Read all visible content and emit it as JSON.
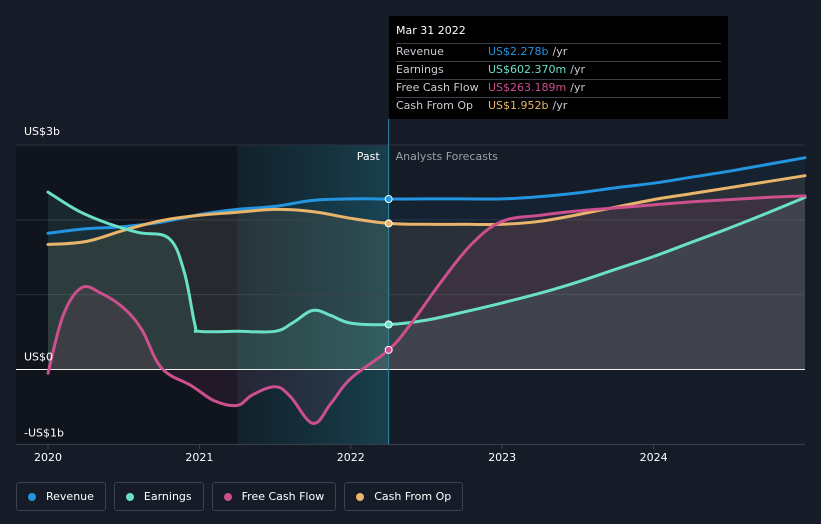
{
  "colors": {
    "revenue": "#2394df",
    "earnings": "#6ae0c6",
    "fcf": "#cc4f8e",
    "cfo": "#e8b56a"
  },
  "tooltip": {
    "date": "Mar 31 2022",
    "rows": [
      {
        "label": "Revenue",
        "value": "US$2.278b",
        "unit": "/yr"
      },
      {
        "label": "Earnings",
        "value": "US$602.370m",
        "unit": "/yr"
      },
      {
        "label": "Free Cash Flow",
        "value": "US$263.189m",
        "unit": "/yr"
      },
      {
        "label": "Cash From Op",
        "value": "US$1.952b",
        "unit": "/yr"
      }
    ]
  },
  "legend": [
    {
      "label": "Revenue",
      "key": "revenue"
    },
    {
      "label": "Earnings",
      "key": "earnings"
    },
    {
      "label": "Free Cash Flow",
      "key": "fcf"
    },
    {
      "label": "Cash From Op",
      "key": "cfo"
    }
  ],
  "chart_data": {
    "type": "line",
    "y_unit": "US$ billions",
    "ylim": [
      -1.0,
      3.0
    ],
    "xlim": [
      2020.0,
      2025.0
    ],
    "y_labels": [
      {
        "value": 3.0,
        "text": "US$3b"
      },
      {
        "value": 0.0,
        "text": "US$0"
      },
      {
        "value": -1.0,
        "text": "-US$1b"
      }
    ],
    "x_ticks": [
      {
        "value": 2020,
        "text": "2020"
      },
      {
        "value": 2021,
        "text": "2021"
      },
      {
        "value": 2022,
        "text": "2022"
      },
      {
        "value": 2023,
        "text": "2023"
      },
      {
        "value": 2024,
        "text": "2024"
      }
    ],
    "period_labels": {
      "past": "Past",
      "forecast": "Analysts Forecasts"
    },
    "highlight_range": [
      2021.25,
      2022.25
    ],
    "marker_x": 2022.25,
    "series": [
      {
        "name": "Revenue",
        "key": "revenue",
        "points": [
          [
            2020.0,
            1.82
          ],
          [
            2020.25,
            1.88
          ],
          [
            2020.5,
            1.91
          ],
          [
            2020.75,
            1.97
          ],
          [
            2021.0,
            2.07
          ],
          [
            2021.25,
            2.14
          ],
          [
            2021.5,
            2.18
          ],
          [
            2021.75,
            2.26
          ],
          [
            2022.0,
            2.28
          ],
          [
            2022.25,
            2.278
          ],
          [
            2022.5,
            2.28
          ],
          [
            2022.75,
            2.28
          ],
          [
            2023.0,
            2.28
          ],
          [
            2023.25,
            2.31
          ],
          [
            2023.5,
            2.36
          ],
          [
            2023.75,
            2.43
          ],
          [
            2024.0,
            2.49
          ],
          [
            2024.25,
            2.57
          ],
          [
            2024.5,
            2.65
          ],
          [
            2024.75,
            2.74
          ],
          [
            2025.0,
            2.83
          ]
        ]
      },
      {
        "name": "Earnings",
        "key": "earnings",
        "points": [
          [
            2020.0,
            2.37
          ],
          [
            2020.2,
            2.12
          ],
          [
            2020.4,
            1.95
          ],
          [
            2020.6,
            1.83
          ],
          [
            2020.8,
            1.75
          ],
          [
            2020.9,
            1.3
          ],
          [
            2020.97,
            0.6
          ],
          [
            2021.0,
            0.51
          ],
          [
            2021.25,
            0.51
          ],
          [
            2021.5,
            0.51
          ],
          [
            2021.62,
            0.63
          ],
          [
            2021.75,
            0.79
          ],
          [
            2021.87,
            0.72
          ],
          [
            2022.0,
            0.62
          ],
          [
            2022.25,
            0.602
          ],
          [
            2022.5,
            0.66
          ],
          [
            2022.75,
            0.77
          ],
          [
            2023.0,
            0.89
          ],
          [
            2023.25,
            1.02
          ],
          [
            2023.5,
            1.17
          ],
          [
            2023.75,
            1.34
          ],
          [
            2024.0,
            1.51
          ],
          [
            2024.25,
            1.7
          ],
          [
            2024.5,
            1.89
          ],
          [
            2024.75,
            2.09
          ],
          [
            2025.0,
            2.3
          ]
        ]
      },
      {
        "name": "Free Cash Flow",
        "key": "fcf",
        "points": [
          [
            2020.0,
            -0.05
          ],
          [
            2020.1,
            0.72
          ],
          [
            2020.22,
            1.09
          ],
          [
            2020.35,
            1.02
          ],
          [
            2020.5,
            0.82
          ],
          [
            2020.62,
            0.53
          ],
          [
            2020.75,
            0.02
          ],
          [
            2020.95,
            -0.22
          ],
          [
            2021.1,
            -0.42
          ],
          [
            2021.25,
            -0.48
          ],
          [
            2021.35,
            -0.34
          ],
          [
            2021.5,
            -0.23
          ],
          [
            2021.6,
            -0.36
          ],
          [
            2021.75,
            -0.72
          ],
          [
            2021.87,
            -0.45
          ],
          [
            2022.0,
            -0.12
          ],
          [
            2022.25,
            0.263
          ],
          [
            2022.4,
            0.62
          ],
          [
            2022.6,
            1.18
          ],
          [
            2022.8,
            1.68
          ],
          [
            2023.0,
            1.98
          ],
          [
            2023.25,
            2.06
          ],
          [
            2023.5,
            2.12
          ],
          [
            2023.75,
            2.16
          ],
          [
            2024.0,
            2.2
          ],
          [
            2024.25,
            2.24
          ],
          [
            2024.5,
            2.27
          ],
          [
            2024.75,
            2.3
          ],
          [
            2025.0,
            2.32
          ]
        ]
      },
      {
        "name": "Cash From Op",
        "key": "cfo",
        "points": [
          [
            2020.0,
            1.67
          ],
          [
            2020.25,
            1.71
          ],
          [
            2020.5,
            1.86
          ],
          [
            2020.75,
            1.99
          ],
          [
            2021.0,
            2.06
          ],
          [
            2021.25,
            2.1
          ],
          [
            2021.5,
            2.14
          ],
          [
            2021.75,
            2.11
          ],
          [
            2022.0,
            2.02
          ],
          [
            2022.25,
            1.952
          ],
          [
            2022.5,
            1.94
          ],
          [
            2022.75,
            1.94
          ],
          [
            2023.0,
            1.94
          ],
          [
            2023.25,
            1.98
          ],
          [
            2023.5,
            2.07
          ],
          [
            2023.75,
            2.17
          ],
          [
            2024.0,
            2.27
          ],
          [
            2024.25,
            2.35
          ],
          [
            2024.5,
            2.43
          ],
          [
            2024.75,
            2.51
          ],
          [
            2025.0,
            2.59
          ]
        ]
      }
    ]
  }
}
